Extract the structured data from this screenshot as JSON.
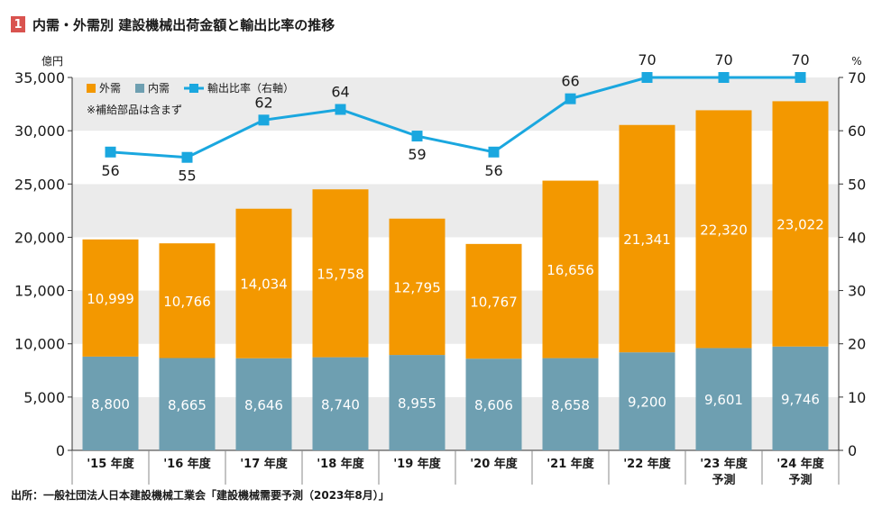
{
  "figure": {
    "number": "1",
    "title": "内需・外需別 建設機械出荷金額と輸出比率の推移"
  },
  "source": "出所：一般社団法人日本建設機械工業会「建設機械需要予測（2023年8月）」",
  "chart_data": {
    "type": "bar",
    "stacked": true,
    "categories": [
      [
        "'15 年度"
      ],
      [
        "'16 年度"
      ],
      [
        "'17 年度"
      ],
      [
        "'18 年度"
      ],
      [
        "'19 年度"
      ],
      [
        "'20 年度"
      ],
      [
        "'21 年度"
      ],
      [
        "'22 年度"
      ],
      [
        "'23 年度",
        "予測"
      ],
      [
        "'24 年度",
        "予測"
      ]
    ],
    "series": [
      {
        "name": "内需",
        "color": "#6e9fb1",
        "values": [
          8800,
          8665,
          8646,
          8740,
          8955,
          8606,
          8658,
          9200,
          9601,
          9746
        ],
        "labels": [
          "8,800",
          "8,665",
          "8,646",
          "8,740",
          "8,955",
          "8,606",
          "8,658",
          "9,200",
          "9,601",
          "9,746"
        ]
      },
      {
        "name": "外需",
        "color": "#f39800",
        "values": [
          10999,
          10766,
          14034,
          15758,
          12795,
          10767,
          16656,
          21341,
          22320,
          23022
        ],
        "labels": [
          "10,999",
          "10,766",
          "14,034",
          "15,758",
          "12,795",
          "10,767",
          "16,656",
          "21,341",
          "22,320",
          "23,022"
        ]
      }
    ],
    "line_series": {
      "name": "輸出比率（右軸）",
      "color": "#1aa7df",
      "values": [
        56,
        55,
        62,
        64,
        59,
        56,
        66,
        70,
        70,
        70
      ],
      "labels": [
        "56",
        "55",
        "62",
        "64",
        "59",
        "56",
        "66",
        "70",
        "70",
        "70"
      ]
    },
    "left_axis": {
      "unit": "億円",
      "range": [
        0,
        35000
      ],
      "ticks": [
        "0",
        "5,000",
        "10,000",
        "15,000",
        "20,000",
        "25,000",
        "30,000",
        "35,000"
      ],
      "tick_values": [
        0,
        5000,
        10000,
        15000,
        20000,
        25000,
        30000,
        35000
      ]
    },
    "right_axis": {
      "unit": "%",
      "range": [
        0,
        70
      ],
      "ticks": [
        "0",
        "10",
        "20",
        "30",
        "40",
        "50",
        "60",
        "70"
      ]
    },
    "legend": {
      "placement": "top-left",
      "items": [
        {
          "label": "外需",
          "color": "#f39800",
          "kind": "box"
        },
        {
          "label": "内需",
          "color": "#6e9fb1",
          "kind": "box"
        },
        {
          "label": "輸出比率（右軸）",
          "color": "#1aa7df",
          "kind": "line"
        }
      ],
      "note": "※補給部品は含まず"
    },
    "band_colors": [
      "#ebebeb",
      "#ffffff"
    ]
  }
}
